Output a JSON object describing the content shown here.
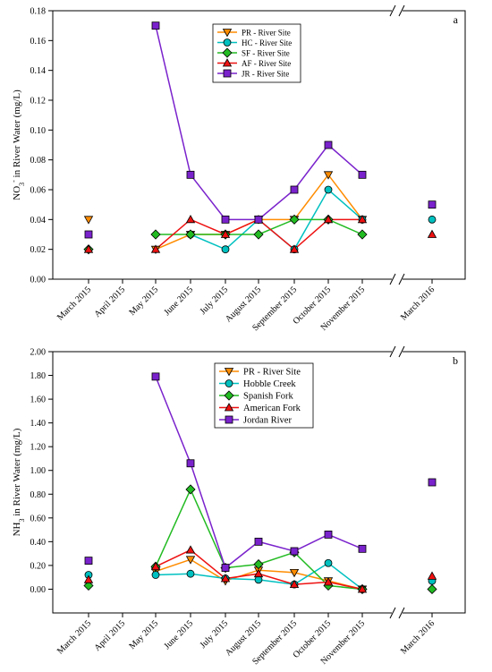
{
  "chart_data": [
    {
      "type": "line",
      "panel_label": "a",
      "ylabel_parts": [
        "NO",
        "3",
        "-",
        " in River Water (mg/L)"
      ],
      "ylim": [
        0,
        0.18
      ],
      "yticks": [
        "0.00",
        "0.02",
        "0.04",
        "0.06",
        "0.08",
        "0.10",
        "0.12",
        "0.14",
        "0.16",
        "0.18"
      ],
      "categories": [
        "March 2015",
        "April 2015",
        "May 2015",
        "June 2015",
        "July 2015",
        "August 2015",
        "September 2015",
        "October 2015",
        "November 2015",
        "March 2016"
      ],
      "axis_break": "between November 2015 and March 2016",
      "legend_position": "top-center",
      "series": [
        {
          "name": "PR - River Site",
          "color": "#ff8c00",
          "marker": "triangle-down",
          "values": [
            0.04,
            null,
            0.02,
            0.03,
            0.03,
            0.04,
            0.04,
            0.07,
            0.04,
            null
          ]
        },
        {
          "name": "HC - River Site",
          "color": "#00c0c0",
          "marker": "circle",
          "values": [
            null,
            null,
            null,
            0.03,
            0.02,
            0.04,
            0.02,
            0.06,
            0.04,
            0.04
          ]
        },
        {
          "name": "SF - River Site",
          "color": "#22bb22",
          "marker": "diamond",
          "values": [
            0.02,
            null,
            0.03,
            0.03,
            0.03,
            0.03,
            0.04,
            0.04,
            0.03,
            null
          ]
        },
        {
          "name": "AF - River Site",
          "color": "#ee1111",
          "marker": "triangle-up",
          "values": [
            0.02,
            null,
            0.02,
            0.04,
            0.03,
            0.04,
            0.02,
            0.04,
            0.04,
            0.03
          ]
        },
        {
          "name": "JR - River Site",
          "color": "#7a22cc",
          "marker": "square",
          "values": [
            0.03,
            null,
            0.17,
            0.07,
            0.04,
            0.04,
            0.06,
            0.09,
            0.07,
            0.05
          ]
        }
      ]
    },
    {
      "type": "line",
      "panel_label": "b",
      "ylabel_parts": [
        "NH",
        "3",
        "",
        " in River Water (mg/L)"
      ],
      "ylim": [
        -0.2,
        2.0
      ],
      "yticks": [
        "0.00",
        "0.20",
        "0.40",
        "0.60",
        "0.80",
        "1.00",
        "1.20",
        "1.40",
        "1.60",
        "1.80",
        "2.00"
      ],
      "categories": [
        "March 2015",
        "April 2015",
        "May 2015",
        "June 2015",
        "July 2015",
        "August 2015",
        "September 2015",
        "October 2015",
        "November 2015",
        "March 2016"
      ],
      "axis_break": "between November 2015 and March 2016",
      "legend_position": "top-center",
      "series": [
        {
          "name": "PR - River Site",
          "color": "#ff8c00",
          "marker": "triangle-down",
          "values": [
            null,
            null,
            0.15,
            0.25,
            0.07,
            0.16,
            0.14,
            0.07,
            0.0,
            null
          ]
        },
        {
          "name": "Hobble Creek",
          "color": "#00c0c0",
          "marker": "circle",
          "values": [
            0.12,
            null,
            0.12,
            0.13,
            0.09,
            0.08,
            0.04,
            0.22,
            0.0,
            0.07
          ]
        },
        {
          "name": "Spanish Fork",
          "color": "#22bb22",
          "marker": "diamond",
          "values": [
            0.03,
            null,
            0.19,
            0.84,
            0.18,
            0.21,
            0.31,
            0.03,
            0.0,
            0.0
          ]
        },
        {
          "name": "American Fork",
          "color": "#ee1111",
          "marker": "triangle-up",
          "values": [
            0.08,
            null,
            0.19,
            0.33,
            0.09,
            0.13,
            0.04,
            0.06,
            0.0,
            0.11
          ]
        },
        {
          "name": "Jordan River",
          "color": "#7a22cc",
          "marker": "square",
          "values": [
            0.24,
            null,
            1.79,
            1.06,
            0.18,
            0.4,
            0.32,
            0.46,
            0.34,
            0.9
          ]
        }
      ]
    }
  ]
}
